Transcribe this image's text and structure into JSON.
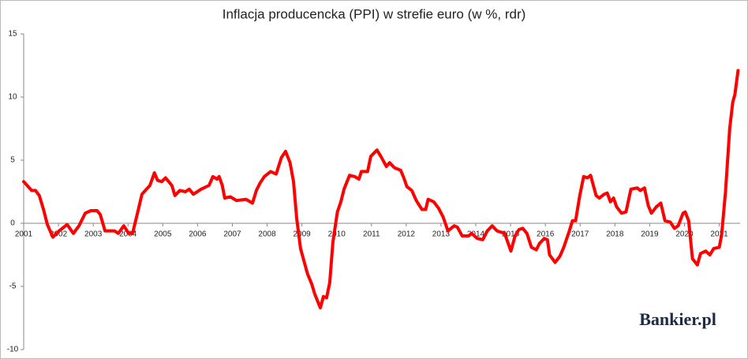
{
  "chart_data": {
    "type": "line",
    "title": "Inflacja producencka (PPI) w strefie euro (w %, rdr)",
    "annotation": "Bankier.pl",
    "x": [
      2001.0,
      2001.23,
      2001.34,
      2001.45,
      2001.57,
      2001.68,
      2001.84,
      2002.02,
      2002.25,
      2002.43,
      2002.59,
      2002.77,
      2002.93,
      2003.11,
      2003.2,
      2003.34,
      2003.61,
      2003.72,
      2003.88,
      2004.02,
      2004.13,
      2004.29,
      2004.4,
      2004.63,
      2004.76,
      2004.85,
      2004.97,
      2005.08,
      2005.26,
      2005.35,
      2005.49,
      2005.65,
      2005.76,
      2005.88,
      2006.1,
      2006.33,
      2006.44,
      2006.56,
      2006.62,
      2006.71,
      2006.78,
      2006.94,
      2007.12,
      2007.39,
      2007.58,
      2007.69,
      2007.8,
      2007.92,
      2008.1,
      2008.26,
      2008.41,
      2008.53,
      2008.66,
      2008.76,
      2008.85,
      2008.96,
      2009.16,
      2009.28,
      2009.37,
      2009.53,
      2009.62,
      2009.71,
      2009.8,
      2009.89,
      2010.02,
      2010.12,
      2010.21,
      2010.37,
      2010.52,
      2010.64,
      2010.71,
      2010.89,
      2010.98,
      2011.16,
      2011.27,
      2011.43,
      2011.52,
      2011.66,
      2011.84,
      2011.93,
      2012.02,
      2012.16,
      2012.29,
      2012.45,
      2012.56,
      2012.63,
      2012.79,
      2012.93,
      2013.06,
      2013.2,
      2013.38,
      2013.47,
      2013.61,
      2013.79,
      2013.88,
      2014.04,
      2014.2,
      2014.33,
      2014.47,
      2014.61,
      2014.83,
      2015.01,
      2015.13,
      2015.24,
      2015.35,
      2015.47,
      2015.6,
      2015.74,
      2015.83,
      2015.97,
      2016.06,
      2016.12,
      2016.28,
      2016.42,
      2016.53,
      2016.69,
      2016.78,
      2016.87,
      2016.99,
      2017.1,
      2017.21,
      2017.3,
      2017.46,
      2017.55,
      2017.69,
      2017.78,
      2017.87,
      2017.96,
      2018.05,
      2018.19,
      2018.32,
      2018.46,
      2018.64,
      2018.73,
      2018.85,
      2018.96,
      2019.05,
      2019.19,
      2019.32,
      2019.44,
      2019.59,
      2019.71,
      2019.82,
      2019.96,
      2020.02,
      2020.12,
      2020.23,
      2020.37,
      2020.46,
      2020.61,
      2020.73,
      2020.84,
      2021.0,
      2021.07,
      2021.18,
      2021.3,
      2021.39,
      2021.45,
      2021.54
    ],
    "values": [
      3.3,
      2.6,
      2.6,
      2.2,
      1.1,
      -0.1,
      -1.1,
      -0.6,
      -0.1,
      -0.8,
      -0.2,
      0.8,
      1.0,
      1.0,
      0.7,
      -0.6,
      -0.6,
      -0.8,
      -0.2,
      -0.8,
      -0.8,
      1.0,
      2.3,
      3.0,
      4.0,
      3.4,
      3.3,
      3.6,
      3.0,
      2.2,
      2.6,
      2.5,
      2.7,
      2.3,
      2.7,
      3.0,
      3.7,
      3.5,
      3.7,
      3.0,
      2.0,
      2.1,
      1.8,
      1.9,
      1.6,
      2.6,
      3.2,
      3.7,
      4.1,
      3.9,
      5.2,
      5.7,
      4.8,
      3.3,
      0.4,
      -2.0,
      -4.0,
      -4.8,
      -5.6,
      -6.7,
      -5.8,
      -5.9,
      -4.7,
      -1.5,
      0.9,
      1.7,
      2.7,
      3.8,
      3.7,
      3.5,
      4.1,
      4.1,
      5.3,
      5.8,
      5.3,
      4.5,
      4.8,
      4.4,
      4.2,
      3.6,
      2.9,
      2.6,
      1.8,
      1.1,
      1.1,
      1.9,
      1.7,
      1.2,
      0.5,
      -0.6,
      -0.2,
      -0.3,
      -1.0,
      -1.0,
      -0.8,
      -1.2,
      -1.3,
      -0.6,
      -0.2,
      -0.6,
      -0.8,
      -2.2,
      -1.0,
      -0.5,
      -0.4,
      -0.8,
      -1.9,
      -2.1,
      -1.6,
      -1.2,
      -1.3,
      -2.5,
      -3.1,
      -2.6,
      -1.9,
      -0.6,
      0.2,
      0.2,
      2.2,
      3.7,
      3.6,
      3.8,
      2.2,
      2.0,
      2.3,
      2.4,
      1.7,
      2.0,
      1.3,
      0.8,
      0.9,
      2.7,
      2.8,
      2.6,
      2.8,
      1.4,
      0.8,
      1.3,
      1.6,
      0.2,
      0.1,
      -0.4,
      -0.2,
      0.8,
      0.9,
      0.2,
      -2.8,
      -3.3,
      -2.4,
      -2.2,
      -2.5,
      -2.0,
      -1.9,
      -0.9,
      2.5,
      7.5,
      9.6,
      10.2,
      12.1
    ],
    "color": "#ff0000",
    "xlim": [
      2001,
      2021.6
    ],
    "xticks": [
      2001,
      2002,
      2003,
      2004,
      2005,
      2006,
      2007,
      2008,
      2009,
      2010,
      2011,
      2012,
      2013,
      2014,
      2015,
      2016,
      2017,
      2018,
      2019,
      2020,
      2021
    ],
    "ylim": [
      -10,
      15
    ],
    "yticks": [
      -10,
      -5,
      0,
      5,
      10,
      15
    ],
    "grid": false
  }
}
